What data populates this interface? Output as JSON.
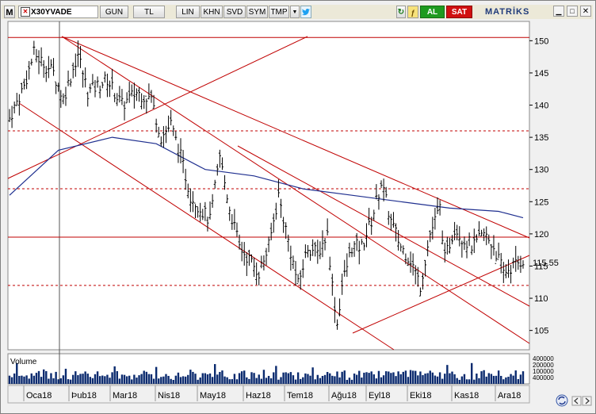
{
  "toolbar": {
    "menu_label": "M",
    "symbol": "X30YVADE",
    "period": "GUN",
    "currency": "TL",
    "scale": "LIN",
    "buttons": [
      "KHN",
      "SVD",
      "SYM",
      "TMP"
    ],
    "buy_label": "AL",
    "sell_label": "SAT",
    "brand": "MATRİKS"
  },
  "chart_data": {
    "type": "candlestick",
    "symbol": "X30YVADE",
    "y_ticks": [
      150,
      145,
      140,
      135,
      130,
      125,
      120,
      115,
      110,
      105
    ],
    "last_price": "115.55",
    "x_labels": [
      "Oca18",
      "Þub18",
      "Mar18",
      "Nis18",
      "May18",
      "Haz18",
      "Tem18",
      "Ağu18",
      "Eyl18",
      "Eki18",
      "Kas18",
      "Ara18"
    ],
    "ylim": [
      102,
      153
    ],
    "horizontal_levels_solid": [
      150.5,
      119.5
    ],
    "horizontal_levels_dashed": [
      136,
      127,
      112
    ],
    "series_key_points": [
      [
        0,
        138
      ],
      [
        6,
        143
      ],
      [
        10,
        148
      ],
      [
        18,
        145
      ],
      [
        22,
        141
      ],
      [
        28,
        148
      ],
      [
        32,
        142
      ],
      [
        40,
        144
      ],
      [
        46,
        140
      ],
      [
        52,
        142
      ],
      [
        58,
        141
      ],
      [
        62,
        135
      ],
      [
        66,
        137
      ],
      [
        70,
        132
      ],
      [
        74,
        126
      ],
      [
        78,
        124
      ],
      [
        82,
        122
      ],
      [
        86,
        132
      ],
      [
        90,
        124
      ],
      [
        94,
        118
      ],
      [
        98,
        116
      ],
      [
        102,
        114
      ],
      [
        106,
        118
      ],
      [
        110,
        126
      ],
      [
        114,
        119
      ],
      [
        118,
        112
      ],
      [
        122,
        118
      ],
      [
        126,
        117
      ],
      [
        130,
        120
      ],
      [
        132,
        112
      ],
      [
        134,
        106
      ],
      [
        136,
        112
      ],
      [
        140,
        118
      ],
      [
        144,
        118
      ],
      [
        148,
        122
      ],
      [
        152,
        128
      ],
      [
        156,
        122
      ],
      [
        160,
        118
      ],
      [
        164,
        116
      ],
      [
        168,
        112
      ],
      [
        172,
        120
      ],
      [
        176,
        124
      ],
      [
        178,
        116
      ],
      [
        182,
        121
      ],
      [
        186,
        119
      ],
      [
        190,
        118
      ],
      [
        194,
        120
      ],
      [
        198,
        118
      ],
      [
        202,
        114
      ],
      [
        206,
        115
      ],
      [
        210,
        116
      ]
    ],
    "moving_average": [
      [
        0,
        126
      ],
      [
        20,
        133
      ],
      [
        42,
        135
      ],
      [
        60,
        134
      ],
      [
        80,
        130
      ],
      [
        100,
        129
      ],
      [
        120,
        127
      ],
      [
        140,
        126
      ],
      [
        160,
        125
      ],
      [
        180,
        124
      ],
      [
        200,
        123.5
      ],
      [
        210,
        122.5
      ]
    ],
    "volume_label": "Volume",
    "volume_ticks": [
      "400000",
      "200000",
      "100000",
      "400000"
    ]
  }
}
